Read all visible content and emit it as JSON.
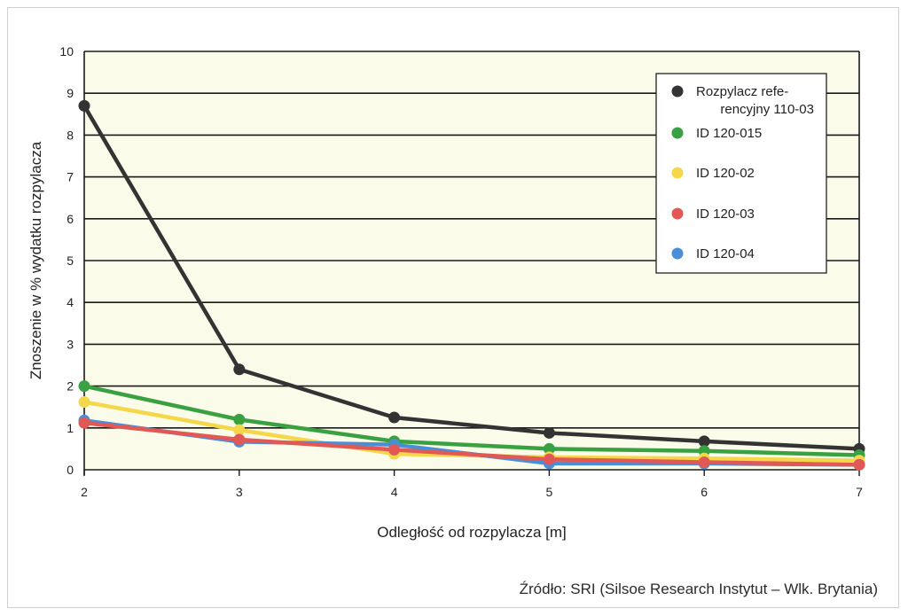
{
  "source_note": "Źródło: SRI (Silsoe Research Instytut – Wlk. Brytania)",
  "chart_data": {
    "type": "line",
    "title": "",
    "xlabel": "Odległość od rozpylacza [m]",
    "ylabel": "Znoszenie w % wydatku rozpylacza",
    "x": [
      2,
      3,
      4,
      5,
      6,
      7
    ],
    "xlim": [
      2,
      7
    ],
    "ylim": [
      0,
      10
    ],
    "xticks": [
      "2",
      "3",
      "4",
      "5",
      "6",
      "7"
    ],
    "yticks": [
      "0",
      "1",
      "2",
      "3",
      "4",
      "5",
      "6",
      "7",
      "8",
      "9",
      "10"
    ],
    "grid": true,
    "plot_background": "#fbfbea",
    "legend_position": "top-right",
    "series": [
      {
        "name": "Rozpylacz refe-rencyjny 110-03",
        "legend_lines": [
          "Rozpylacz refe-",
          "rencyjny 110-03"
        ],
        "color": "#333333",
        "values": [
          8.7,
          2.4,
          1.25,
          0.88,
          0.68,
          0.5
        ]
      },
      {
        "name": "ID 120-015",
        "legend_lines": [
          "ID 120-015"
        ],
        "color": "#3aa142",
        "values": [
          2.0,
          1.2,
          0.68,
          0.5,
          0.45,
          0.35
        ]
      },
      {
        "name": "ID 120-02",
        "legend_lines": [
          "ID 120-02"
        ],
        "color": "#f5d74a",
        "values": [
          1.62,
          0.95,
          0.38,
          0.3,
          0.27,
          0.22
        ]
      },
      {
        "name": "ID 120-03",
        "legend_lines": [
          "ID 120-03"
        ],
        "color": "#e15854",
        "values": [
          1.12,
          0.72,
          0.48,
          0.25,
          0.18,
          0.12
        ]
      },
      {
        "name": "ID 120-04",
        "legend_lines": [
          "ID 120-04"
        ],
        "color": "#4a8fd6",
        "values": [
          1.18,
          0.67,
          0.6,
          0.15,
          0.15,
          0.12
        ]
      }
    ]
  }
}
